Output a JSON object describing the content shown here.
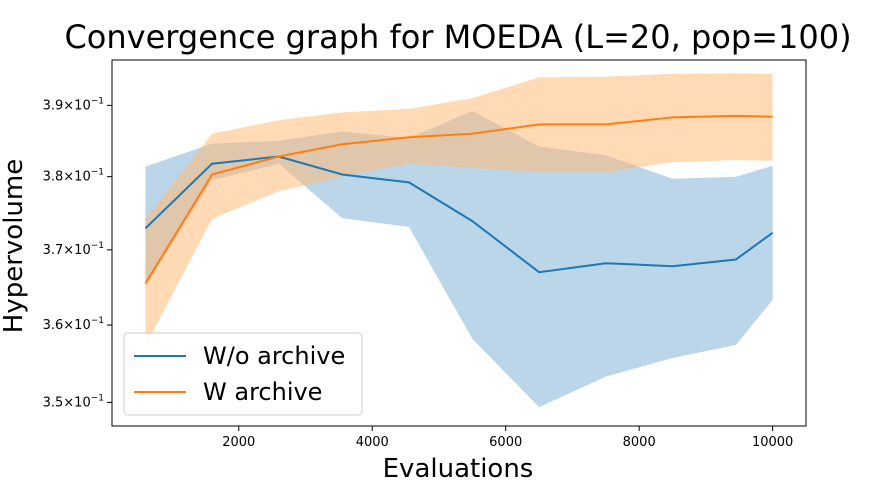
{
  "chart_data": {
    "type": "line",
    "title": "Convergence graph for MOEDA (L=20, pop=100)",
    "xlabel": "Evaluations",
    "ylabel": "Hypervolume",
    "xlim": [
      100,
      10500
    ],
    "ylim": [
      0.347,
      0.3965
    ],
    "yscale": "log",
    "grid": false,
    "legend_position": "lower-left",
    "x_ticks": [
      {
        "value": 2000,
        "label": "2000"
      },
      {
        "value": 4000,
        "label": "4000"
      },
      {
        "value": 6000,
        "label": "6000"
      },
      {
        "value": 8000,
        "label": "8000"
      },
      {
        "value": 10000,
        "label": "10000"
      }
    ],
    "y_ticks": [
      {
        "value": 0.35,
        "base": "3.5",
        "exp": "−1"
      },
      {
        "value": 0.36,
        "base": "3.6",
        "exp": "−1"
      },
      {
        "value": 0.37,
        "base": "3.7",
        "exp": "−1"
      },
      {
        "value": 0.38,
        "base": "3.8",
        "exp": "−1"
      },
      {
        "value": 0.39,
        "base": "3.9",
        "exp": "−1"
      }
    ],
    "x": [
      600,
      1600,
      2600,
      3550,
      4550,
      5500,
      6500,
      7500,
      8500,
      9450,
      10000
    ],
    "series": [
      {
        "name": "W/o archive",
        "color": "#1f77b4",
        "fill_color": "#1f77b4",
        "values": [
          0.3729,
          0.3818,
          0.3828,
          0.3803,
          0.3792,
          0.3739,
          0.367,
          0.3682,
          0.3678,
          0.3687,
          0.3723
        ],
        "lower": [
          0.365,
          0.3795,
          0.3818,
          0.3743,
          0.3731,
          0.3582,
          0.3494,
          0.3533,
          0.3557,
          0.3574,
          0.3633
        ],
        "upper": [
          0.3814,
          0.3846,
          0.385,
          0.3863,
          0.3854,
          0.3892,
          0.3842,
          0.383,
          0.3797,
          0.38,
          0.3815
        ]
      },
      {
        "name": "W archive",
        "color": "#ff7f0e",
        "fill_color": "#ffbb78",
        "values": [
          0.3655,
          0.3803,
          0.3828,
          0.3845,
          0.3855,
          0.386,
          0.3873,
          0.3873,
          0.3883,
          0.3885,
          0.3884
        ],
        "lower": [
          0.3573,
          0.3742,
          0.378,
          0.38,
          0.3818,
          0.3812,
          0.3806,
          0.3806,
          0.382,
          0.3823,
          0.3822
        ],
        "upper": [
          0.3742,
          0.386,
          0.3879,
          0.389,
          0.3895,
          0.391,
          0.394,
          0.3941,
          0.3945,
          0.3946,
          0.3945
        ]
      }
    ]
  }
}
